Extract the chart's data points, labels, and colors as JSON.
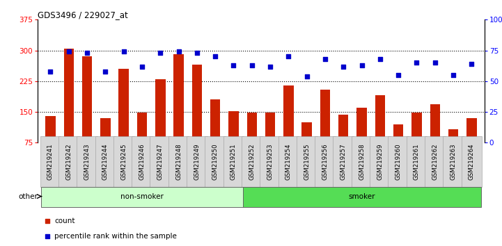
{
  "title": "GDS3496 / 229027_at",
  "samples": [
    "GSM219241",
    "GSM219242",
    "GSM219243",
    "GSM219244",
    "GSM219245",
    "GSM219246",
    "GSM219247",
    "GSM219248",
    "GSM219249",
    "GSM219250",
    "GSM219251",
    "GSM219252",
    "GSM219253",
    "GSM219254",
    "GSM219255",
    "GSM219256",
    "GSM219257",
    "GSM219258",
    "GSM219259",
    "GSM219260",
    "GSM219261",
    "GSM219262",
    "GSM219263",
    "GSM219264"
  ],
  "counts": [
    140,
    305,
    285,
    135,
    255,
    148,
    230,
    290,
    265,
    180,
    152,
    148,
    148,
    215,
    125,
    205,
    143,
    160,
    190,
    120,
    148,
    168,
    108,
    135
  ],
  "percentiles": [
    58,
    74,
    73,
    58,
    74,
    62,
    73,
    74,
    73,
    70,
    63,
    63,
    62,
    70,
    54,
    68,
    62,
    63,
    68,
    55,
    65,
    65,
    55,
    64
  ],
  "ylim_left": [
    75,
    375
  ],
  "ylim_right": [
    0,
    100
  ],
  "yticks_left": [
    75,
    150,
    225,
    300,
    375
  ],
  "yticks_right": [
    0,
    25,
    50,
    75,
    100
  ],
  "groups": [
    {
      "label": "non-smoker",
      "start": 0,
      "end": 11,
      "color": "#ccffcc"
    },
    {
      "label": "smoker",
      "start": 11,
      "end": 24,
      "color": "#55dd55"
    }
  ],
  "bar_color": "#cc2200",
  "dot_color": "#0000cc",
  "bg_color": "#ffffff",
  "legend_items": [
    {
      "label": "count",
      "color": "#cc2200"
    },
    {
      "label": "percentile rank within the sample",
      "color": "#0000cc"
    }
  ]
}
